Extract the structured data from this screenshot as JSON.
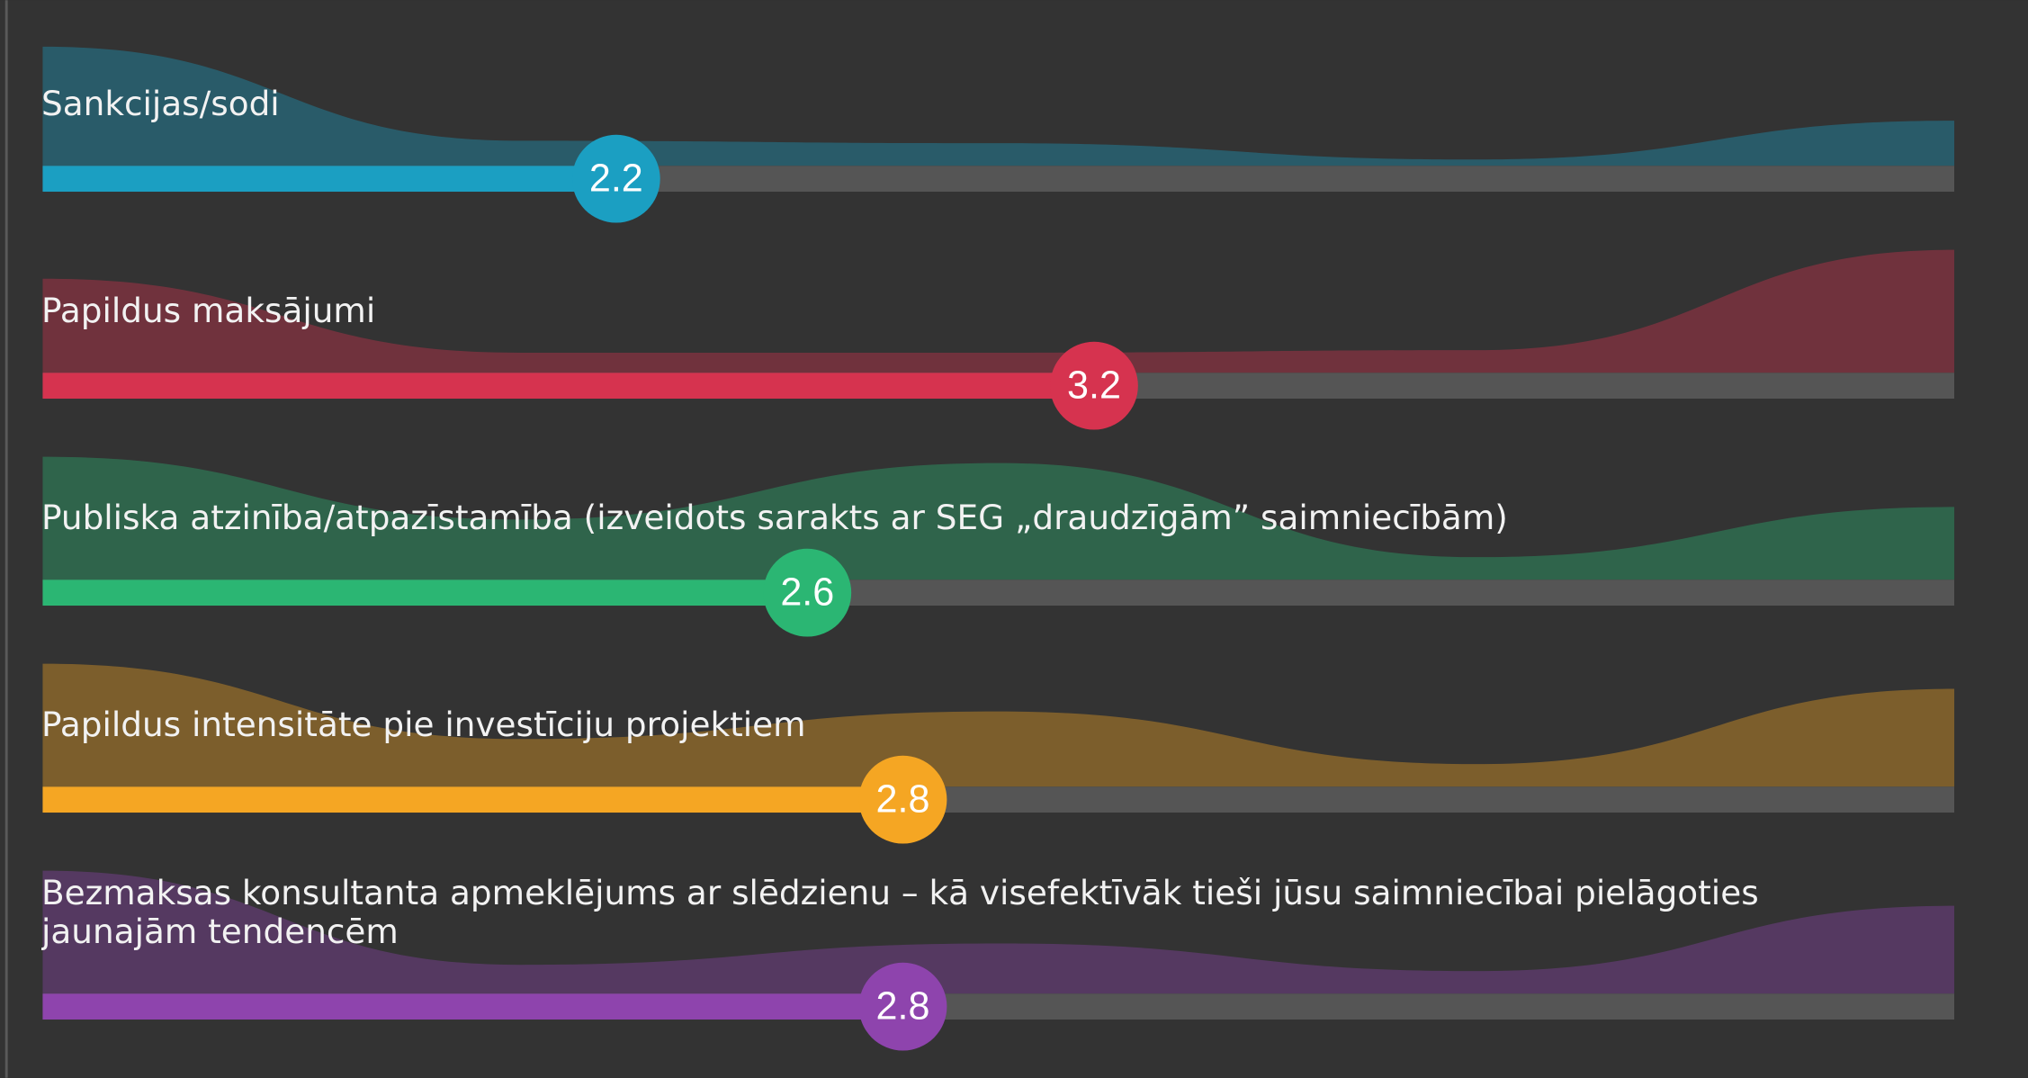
{
  "chart_data": {
    "type": "scale",
    "xlim": [
      1,
      5
    ],
    "dlim": [
      0,
      100
    ],
    "series": [
      {
        "name": "Sankcijas/sodi",
        "color": "#1b9fc2",
        "value": 2.2,
        "distribution": [
          95,
          20,
          18,
          5,
          36
        ]
      },
      {
        "name": "Papildus maksājumi",
        "color": "#d6334f",
        "value": 3.2,
        "distribution": [
          75,
          16,
          16,
          18,
          98
        ]
      },
      {
        "name": "Publiska atzinība/atpazīstamība (izveidots sarakts ar SEG „draudzīgām” saimniecībām)",
        "color": "#2bb673",
        "value": 2.6,
        "distribution": [
          98,
          48,
          93,
          18,
          58
        ]
      },
      {
        "name": "Papildus intensitāte pie investīciju projektiem",
        "color": "#f5a623",
        "value": 2.8,
        "distribution": [
          98,
          38,
          60,
          18,
          78
        ]
      },
      {
        "name": "Bezmaksas konsultanta apmeklējums ar slēdzienu – kā visefektīvāk tieši jūsu saimniecībai pielāgoties jaunajām tendencēm",
        "color": "#8e44ad",
        "value": 2.8,
        "distribution": [
          98,
          23,
          40,
          18,
          70
        ]
      }
    ]
  }
}
